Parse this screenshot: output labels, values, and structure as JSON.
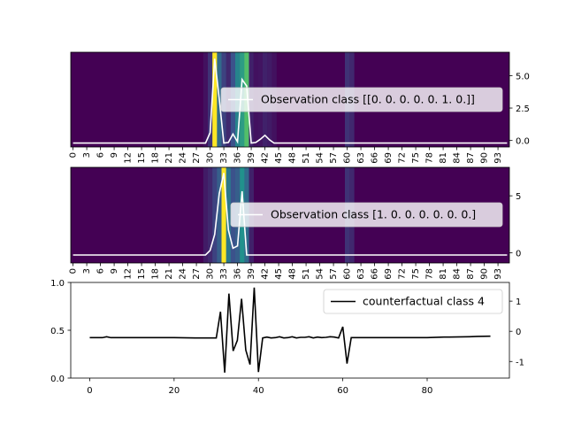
{
  "chart_data": [
    {
      "type": "heatmap",
      "legend_label": "Observation class [[0. 0. 0. 0. 0. 1. 0.]]",
      "legend_position": "right",
      "x_ticks": [
        "0",
        "3",
        "6",
        "9",
        "12",
        "15",
        "18",
        "21",
        "24",
        "27",
        "30",
        "33",
        "36",
        "39",
        "42",
        "45",
        "48",
        "51",
        "54",
        "57",
        "60",
        "63",
        "66",
        "69",
        "72",
        "75",
        "78",
        "81",
        "84",
        "87",
        "90",
        "93"
      ],
      "x_tick_rotation": 90,
      "xlim": [
        -0.5,
        95.5
      ],
      "right_y_ticks": [
        "0.0",
        "2.5",
        "5.0"
      ],
      "ylim": [
        -0.5,
        6.8
      ],
      "heat_colormap": "viridis",
      "heat_values": [
        [
          29,
          0.05
        ],
        [
          30,
          0.15
        ],
        [
          31,
          1.0
        ],
        [
          32,
          0.35
        ],
        [
          33,
          0.2
        ],
        [
          34,
          0.12
        ],
        [
          35,
          0.25
        ],
        [
          36,
          0.45
        ],
        [
          37,
          0.55
        ],
        [
          38,
          0.7
        ],
        [
          39,
          0.1
        ],
        [
          40,
          0.05
        ],
        [
          41,
          0.06
        ],
        [
          42,
          0.1
        ],
        [
          43,
          0.08
        ],
        [
          44,
          0.05
        ],
        [
          60,
          0.15
        ],
        [
          61,
          0.12
        ]
      ],
      "series": [
        {
          "name": "Observation class [[0. 0. 0. 0. 0. 1. 0.]]",
          "color": "#ffffff",
          "x": [
            0,
            5,
            10,
            15,
            20,
            25,
            29,
            30,
            31,
            32,
            33,
            34,
            35,
            36,
            37,
            38,
            39,
            40,
            41,
            42,
            43,
            44,
            45,
            50,
            55,
            60,
            65,
            70,
            75,
            80,
            85,
            90,
            95
          ],
          "y": [
            -0.2,
            -0.2,
            -0.2,
            -0.2,
            -0.2,
            -0.2,
            -0.2,
            0.6,
            6.3,
            3.2,
            -0.2,
            -0.15,
            0.5,
            -0.1,
            4.7,
            4.2,
            -0.2,
            -0.15,
            0.1,
            0.4,
            0.05,
            -0.2,
            -0.2,
            -0.2,
            -0.2,
            -0.2,
            -0.2,
            -0.2,
            -0.2,
            -0.2,
            -0.2,
            -0.2,
            -0.2
          ]
        }
      ]
    },
    {
      "type": "heatmap",
      "legend_label": "Observation class [1. 0. 0. 0. 0. 0. 0.]",
      "legend_position": "right",
      "x_ticks": [
        "0",
        "3",
        "6",
        "9",
        "12",
        "15",
        "18",
        "21",
        "24",
        "27",
        "30",
        "33",
        "36",
        "39",
        "42",
        "45",
        "48",
        "51",
        "54",
        "57",
        "60",
        "63",
        "66",
        "69",
        "72",
        "75",
        "78",
        "81",
        "84",
        "87",
        "90",
        "93"
      ],
      "x_tick_rotation": 90,
      "xlim": [
        -0.5,
        95.5
      ],
      "right_y_ticks": [
        "0",
        "5"
      ],
      "ylim": [
        -0.9,
        7.5
      ],
      "heat_colormap": "viridis",
      "heat_values": [
        [
          29,
          0.08
        ],
        [
          30,
          0.12
        ],
        [
          31,
          0.2
        ],
        [
          32,
          0.3
        ],
        [
          33,
          1.0
        ],
        [
          34,
          0.4
        ],
        [
          35,
          0.25
        ],
        [
          36,
          0.3
        ],
        [
          37,
          0.5
        ],
        [
          38,
          0.35
        ],
        [
          39,
          0.1
        ],
        [
          60,
          0.15
        ],
        [
          61,
          0.12
        ]
      ],
      "series": [
        {
          "name": "Observation class [1. 0. 0. 0. 0. 0. 0.]",
          "color": "#ffffff",
          "x": [
            0,
            5,
            10,
            15,
            20,
            25,
            29,
            30,
            31,
            32,
            33,
            34,
            35,
            36,
            37,
            38,
            39,
            40,
            45,
            50,
            55,
            60,
            65,
            70,
            75,
            80,
            85,
            90,
            95
          ],
          "y": [
            -0.2,
            -0.2,
            -0.2,
            -0.2,
            -0.2,
            -0.2,
            -0.2,
            0.2,
            1.6,
            5.2,
            7.0,
            2.0,
            0.4,
            0.6,
            5.4,
            -0.2,
            -0.2,
            -0.2,
            -0.2,
            -0.2,
            -0.2,
            -0.2,
            -0.2,
            -0.2,
            -0.2,
            -0.2,
            -0.2,
            -0.2,
            -0.2
          ]
        }
      ]
    },
    {
      "type": "line",
      "legend_label": "counterfactual class 4",
      "legend_position": "top-right",
      "x_ticks": [
        "0",
        "20",
        "40",
        "60",
        "80"
      ],
      "xlim": [
        -4.5,
        99.5
      ],
      "left_y_ticks": [
        "0.0",
        "0.5",
        "1.0"
      ],
      "left_ylim": [
        0,
        1
      ],
      "right_y_ticks": [
        "-1",
        "0",
        "1"
      ],
      "right_ylim": [
        -1.55,
        1.62
      ],
      "series": [
        {
          "name": "counterfactual class 4",
          "color": "#000000",
          "x": [
            0,
            1,
            2,
            3,
            4,
            5,
            6,
            10,
            15,
            20,
            25,
            30,
            31,
            32,
            33,
            34,
            35,
            36,
            37,
            38,
            39,
            40,
            41,
            42,
            43,
            44,
            45,
            46,
            47,
            48,
            49,
            50,
            51,
            52,
            53,
            54,
            55,
            56,
            57,
            58,
            59,
            60,
            61,
            62,
            65,
            70,
            75,
            80,
            84,
            85,
            90,
            92,
            95
          ],
          "y": [
            -0.21,
            -0.21,
            -0.21,
            -0.21,
            -0.18,
            -0.21,
            -0.21,
            -0.21,
            -0.21,
            -0.21,
            -0.22,
            -0.22,
            0.65,
            -1.37,
            1.25,
            -0.65,
            -0.3,
            1.08,
            -0.62,
            -1.1,
            1.45,
            -1.35,
            -0.22,
            -0.19,
            -0.22,
            -0.21,
            -0.18,
            -0.22,
            -0.21,
            -0.18,
            -0.22,
            -0.2,
            -0.2,
            -0.18,
            -0.22,
            -0.19,
            -0.21,
            -0.2,
            -0.18,
            -0.19,
            -0.22,
            0.15,
            -1.07,
            -0.21,
            -0.21,
            -0.21,
            -0.21,
            -0.21,
            -0.19,
            -0.19,
            -0.18,
            -0.17,
            -0.16
          ]
        }
      ]
    }
  ]
}
